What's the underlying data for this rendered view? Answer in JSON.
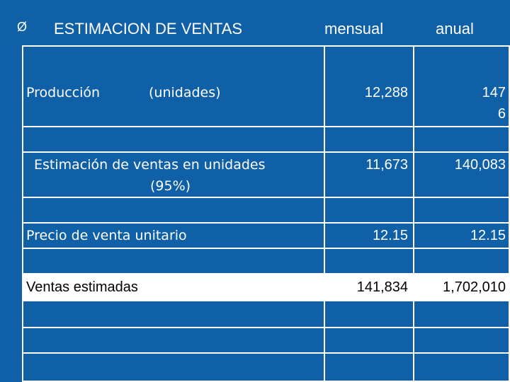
{
  "header": {
    "bullet": "Ø",
    "title": "ESTIMACION DE VENTAS",
    "col_monthly": "mensual",
    "col_annual": "anual"
  },
  "rows": [
    {
      "label": "Producción",
      "label2": "(unidades)",
      "monthly": "12,288",
      "annual_line1": "147",
      "annual_line2": "6"
    },
    {
      "label": "Estimación de ventas en unidades",
      "label2": "(95%)",
      "monthly": "11,673",
      "annual": "140,083"
    },
    {
      "label": "Precio de venta unitario",
      "monthly": "12.15",
      "annual": "12.15"
    },
    {
      "label": "Ventas estimadas",
      "monthly": "141,834",
      "annual": "1,702,010"
    }
  ],
  "colors": {
    "background": "#1060a8",
    "highlight_row": "#ffffff",
    "text": "#ffffff"
  }
}
